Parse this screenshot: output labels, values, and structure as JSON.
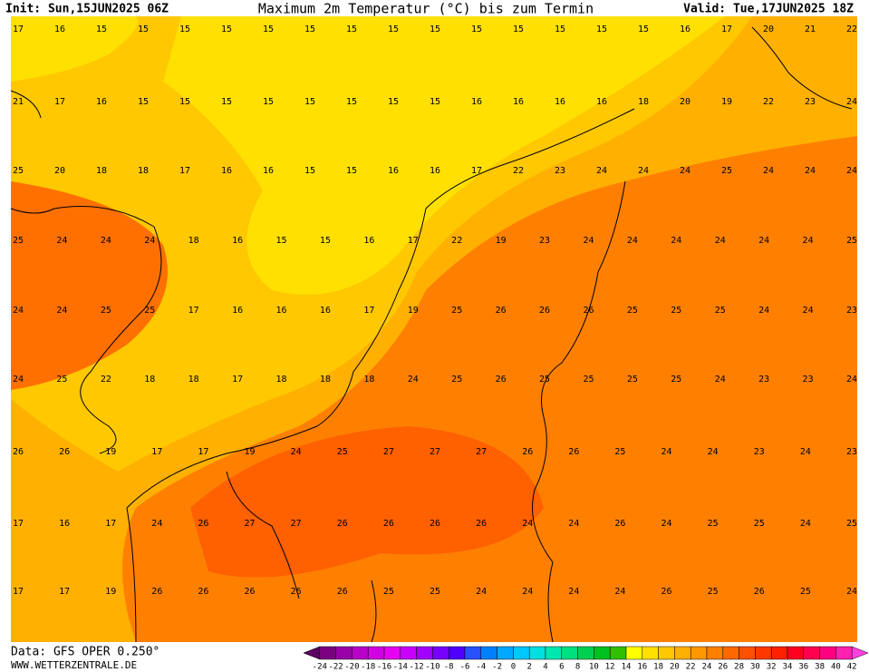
{
  "header": {
    "init": "Init: Sun,15JUN2025 06Z",
    "title": "Maximum 2m Temperatur (°C) bis zum Termin",
    "valid": "Valid: Tue,17JUN2025 18Z"
  },
  "map": {
    "rows": [
      [
        17,
        16,
        15,
        15,
        15,
        15,
        15,
        15,
        15,
        15,
        15,
        15,
        15,
        15,
        15,
        15,
        16,
        17,
        20,
        21,
        22
      ],
      [
        21,
        17,
        16,
        15,
        15,
        15,
        15,
        15,
        15,
        15,
        15,
        16,
        16,
        16,
        16,
        18,
        20,
        19,
        22,
        23,
        24
      ],
      [
        25,
        20,
        18,
        18,
        17,
        16,
        16,
        15,
        15,
        16,
        16,
        17,
        22,
        23,
        24,
        24,
        24,
        25,
        24,
        24,
        24
      ],
      [
        25,
        24,
        24,
        24,
        18,
        16,
        15,
        15,
        16,
        17,
        22,
        19,
        23,
        24,
        24,
        24,
        24,
        24,
        24,
        25
      ],
      [
        24,
        24,
        25,
        25,
        17,
        16,
        16,
        16,
        17,
        19,
        25,
        26,
        26,
        26,
        25,
        25,
        25,
        24,
        24,
        23
      ],
      [
        24,
        25,
        22,
        18,
        18,
        17,
        18,
        18,
        18,
        24,
        25,
        26,
        25,
        25,
        25,
        25,
        24,
        23,
        23,
        24
      ],
      [
        26,
        26,
        19,
        17,
        17,
        19,
        24,
        25,
        27,
        27,
        27,
        26,
        26,
        25,
        24,
        24,
        23,
        24,
        23
      ],
      [
        17,
        16,
        17,
        24,
        26,
        27,
        27,
        26,
        26,
        26,
        26,
        24,
        24,
        26,
        24,
        25,
        25,
        24,
        25
      ],
      [
        17,
        17,
        19,
        26,
        26,
        26,
        26,
        26,
        25,
        25,
        24,
        24,
        24,
        24,
        26,
        25,
        26,
        25,
        24
      ]
    ]
  },
  "legend": {
    "ticks": [
      -24,
      -22,
      -20,
      -18,
      -16,
      -14,
      -12,
      -10,
      -8,
      -6,
      -4,
      -2,
      0,
      2,
      4,
      6,
      8,
      10,
      12,
      14,
      16,
      18,
      20,
      22,
      24,
      26,
      28,
      30,
      32,
      34,
      36,
      38,
      40,
      42
    ],
    "colors": [
      "#5a0060",
      "#7a0080",
      "#9a00a8",
      "#b800c8",
      "#d200e0",
      "#e600f0",
      "#c800ff",
      "#a000ff",
      "#7800ff",
      "#5000ff",
      "#2850ff",
      "#0080ff",
      "#00a8ff",
      "#00c8ff",
      "#00e0e0",
      "#00e8b0",
      "#00e080",
      "#00d050",
      "#00c020",
      "#30c000",
      "#ffff00",
      "#ffe000",
      "#ffc800",
      "#ffb000",
      "#ff9800",
      "#ff8000",
      "#ff6800",
      "#ff5000",
      "#ff3800",
      "#ff2000",
      "#ff0020",
      "#ff0050",
      "#ff0080",
      "#ff20b0",
      "#ff40e0"
    ]
  },
  "footer": {
    "data": "Data: GFS OPER 0.250°",
    "site": "WWW.WETTERZENTRALE.DE"
  }
}
